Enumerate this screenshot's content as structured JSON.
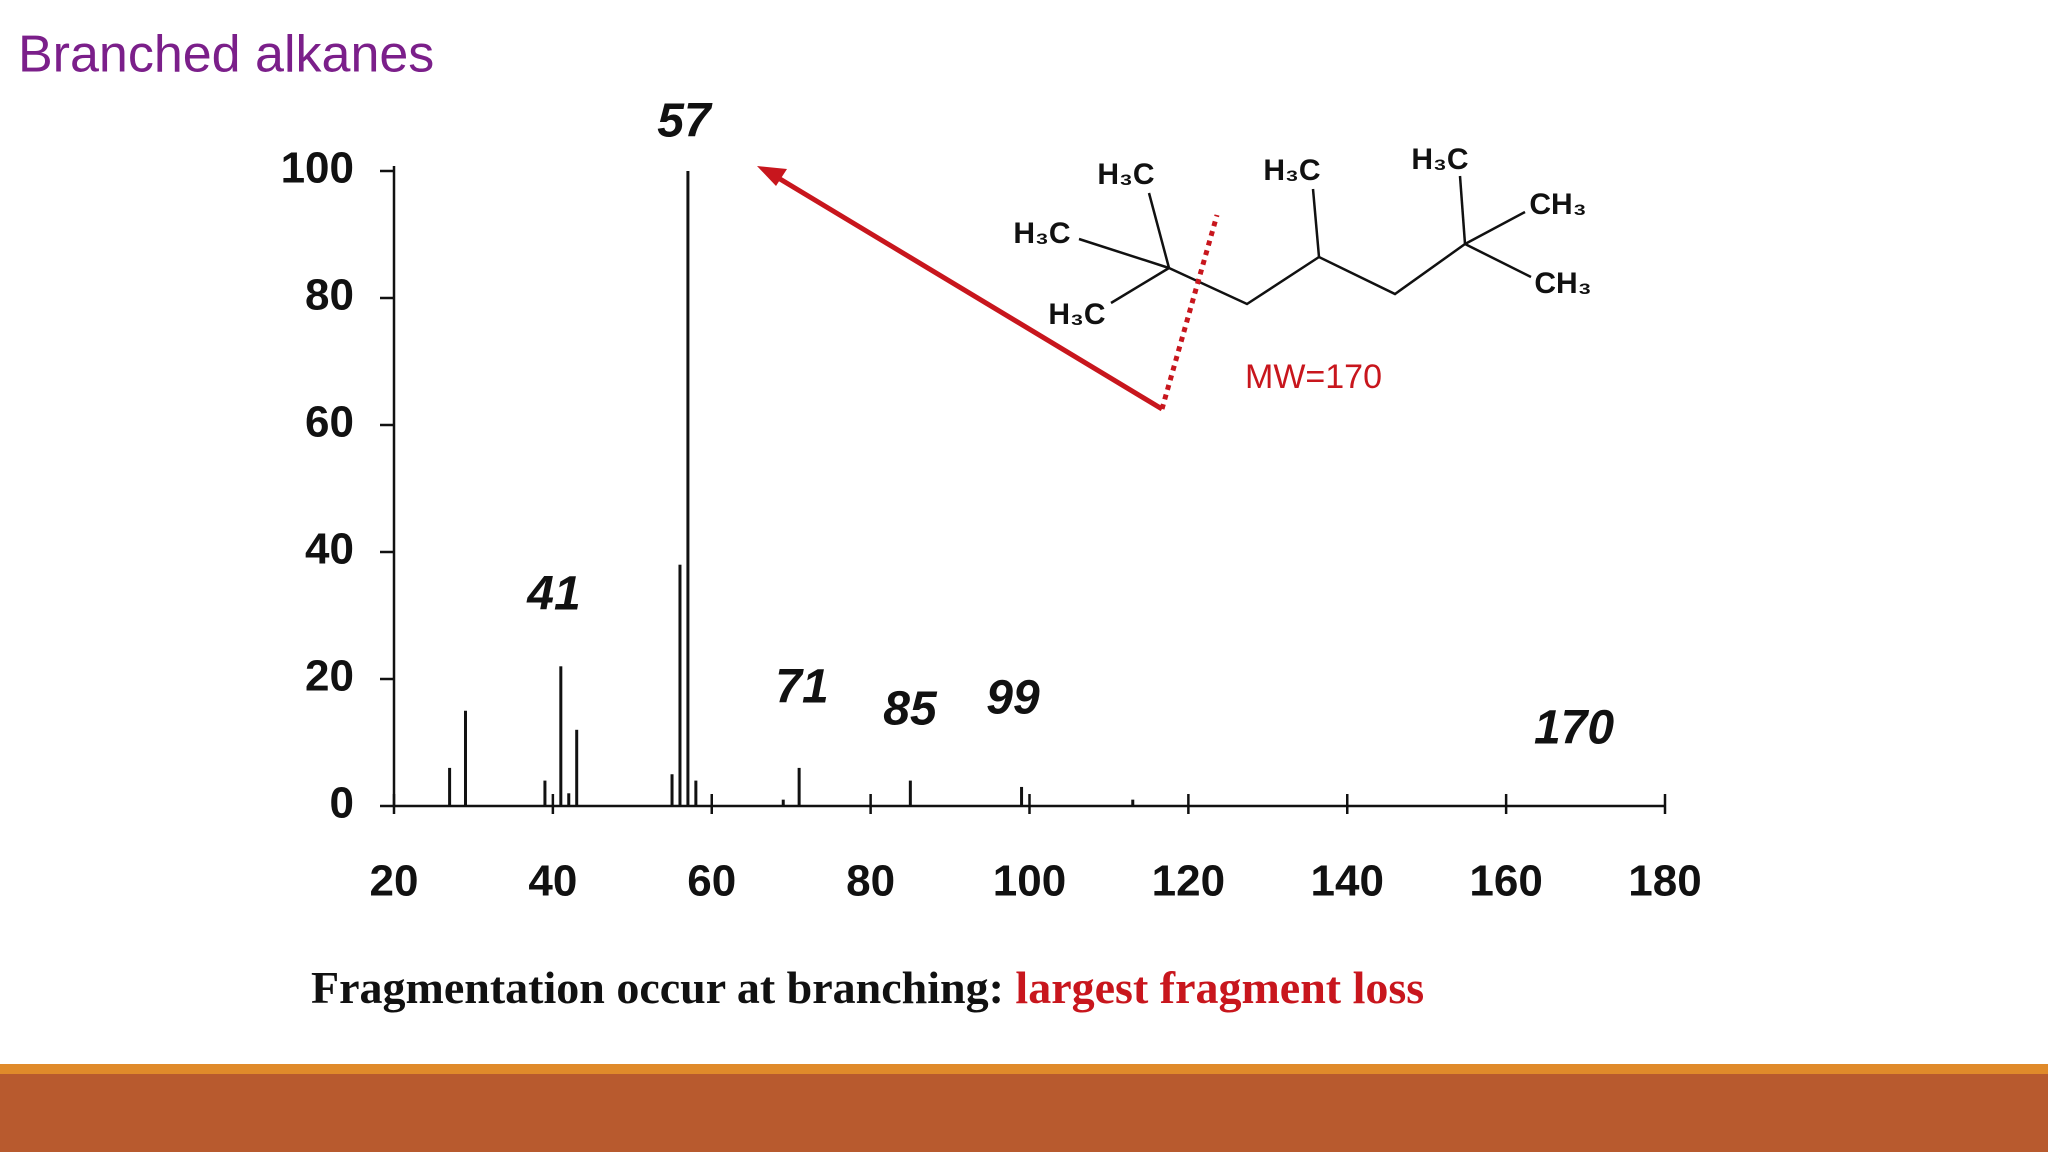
{
  "slide": {
    "title": "Branched alkanes",
    "caption": "Fragmentation occur at branching: ",
    "caption_highlight": "largest fragment loss"
  },
  "molecule": {
    "labels": [
      "H₃C",
      "H₃C",
      "H₃C",
      "H₃C",
      "H₃C",
      "CH₃",
      "CH₃"
    ],
    "mw": "MW=170"
  },
  "chart_data": {
    "type": "bar",
    "x": [
      27,
      29,
      39,
      41,
      42,
      43,
      55,
      56,
      57,
      58,
      69,
      71,
      85,
      99,
      113
    ],
    "values": [
      6,
      15,
      4,
      22,
      2,
      12,
      5,
      38,
      100,
      4,
      1,
      6,
      4,
      3,
      1
    ],
    "color": "#111111",
    "xlim": [
      20,
      180
    ],
    "xticks": [
      20,
      40,
      60,
      80,
      100,
      120,
      140,
      160,
      180
    ],
    "ylim": [
      0,
      100
    ],
    "yticks": [
      0,
      20,
      40,
      60,
      80,
      100
    ],
    "annotations": [
      "57",
      "41",
      "71",
      "85",
      "99",
      "170"
    ]
  }
}
